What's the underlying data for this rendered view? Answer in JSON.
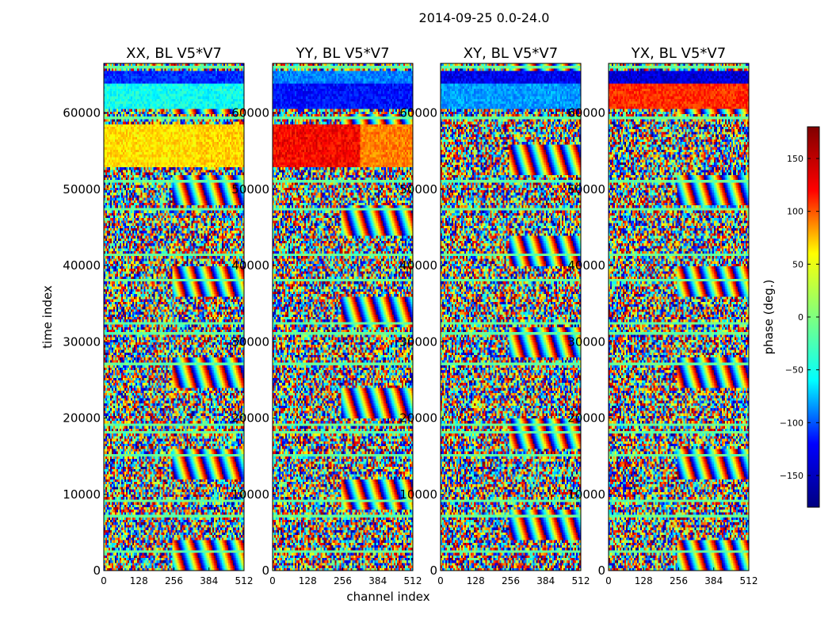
{
  "chart_data": {
    "type": "heatmap",
    "suptitle": "2014-09-25 0.0-24.0",
    "xlabel": "channel index",
    "ylabel": "time index",
    "colorbar_label": "phase (deg.)",
    "colormap": "jet",
    "colormap_stops": [
      "#000080",
      "#0000ff",
      "#00ffff",
      "#7fff7f",
      "#ffff00",
      "#ff0000",
      "#800000"
    ],
    "value_range": [
      -180,
      180
    ],
    "colorbar_ticks": [
      150,
      100,
      50,
      0,
      -50,
      -100,
      -150
    ],
    "colorbar_tick_labels": [
      "150",
      "100",
      "50",
      "0",
      "−50",
      "−100",
      "−150"
    ],
    "xlim": [
      0,
      512
    ],
    "ylim": [
      0,
      66500
    ],
    "xticks": [
      0,
      128,
      256,
      384,
      512
    ],
    "xtick_labels": [
      "0",
      "128",
      "256",
      "384",
      "512"
    ],
    "yticks": [
      0,
      10000,
      20000,
      30000,
      40000,
      50000,
      60000
    ],
    "ytick_labels": [
      "0",
      "10000",
      "20000",
      "30000",
      "40000",
      "50000",
      "60000"
    ],
    "panels": [
      {
        "title": "XX, BL V5*V7",
        "coherent_bands": [
          {
            "y0": 53000,
            "y1": 58500,
            "x0": 0,
            "x1": 330,
            "phase": 55
          },
          {
            "y0": 53000,
            "y1": 58500,
            "x0": 330,
            "x1": 512,
            "phase": 60
          },
          {
            "y0": 60500,
            "y1": 64000,
            "x0": 0,
            "x1": 512,
            "phase": -40
          },
          {
            "y0": 64000,
            "y1": 65500,
            "x0": 0,
            "x1": 512,
            "phase": -120
          }
        ]
      },
      {
        "title": "YY, BL V5*V7",
        "coherent_bands": [
          {
            "y0": 53000,
            "y1": 58500,
            "x0": 0,
            "x1": 320,
            "phase": 135
          },
          {
            "y0": 53000,
            "y1": 58500,
            "x0": 320,
            "x1": 512,
            "phase": 90
          },
          {
            "y0": 60500,
            "y1": 64000,
            "x0": 0,
            "x1": 512,
            "phase": -130
          },
          {
            "y0": 64000,
            "y1": 65500,
            "x0": 0,
            "x1": 512,
            "phase": -90
          }
        ]
      },
      {
        "title": "XY, BL V5*V7",
        "coherent_bands": [
          {
            "y0": 60500,
            "y1": 64000,
            "x0": 0,
            "x1": 512,
            "phase": -80
          },
          {
            "y0": 64000,
            "y1": 65500,
            "x0": 0,
            "x1": 512,
            "phase": -140
          }
        ]
      },
      {
        "title": "YX, BL V5*V7",
        "coherent_bands": [
          {
            "y0": 60500,
            "y1": 64000,
            "x0": 0,
            "x1": 512,
            "phase": 120
          },
          {
            "y0": 64000,
            "y1": 65500,
            "x0": 0,
            "x1": 512,
            "phase": -150
          }
        ]
      }
    ],
    "flagged_rows": [
      2500,
      7000,
      9000,
      15000,
      18000,
      19000,
      27000,
      31000,
      32500,
      38000,
      41500,
      47500,
      51000,
      59500,
      61000,
      66000
    ]
  }
}
